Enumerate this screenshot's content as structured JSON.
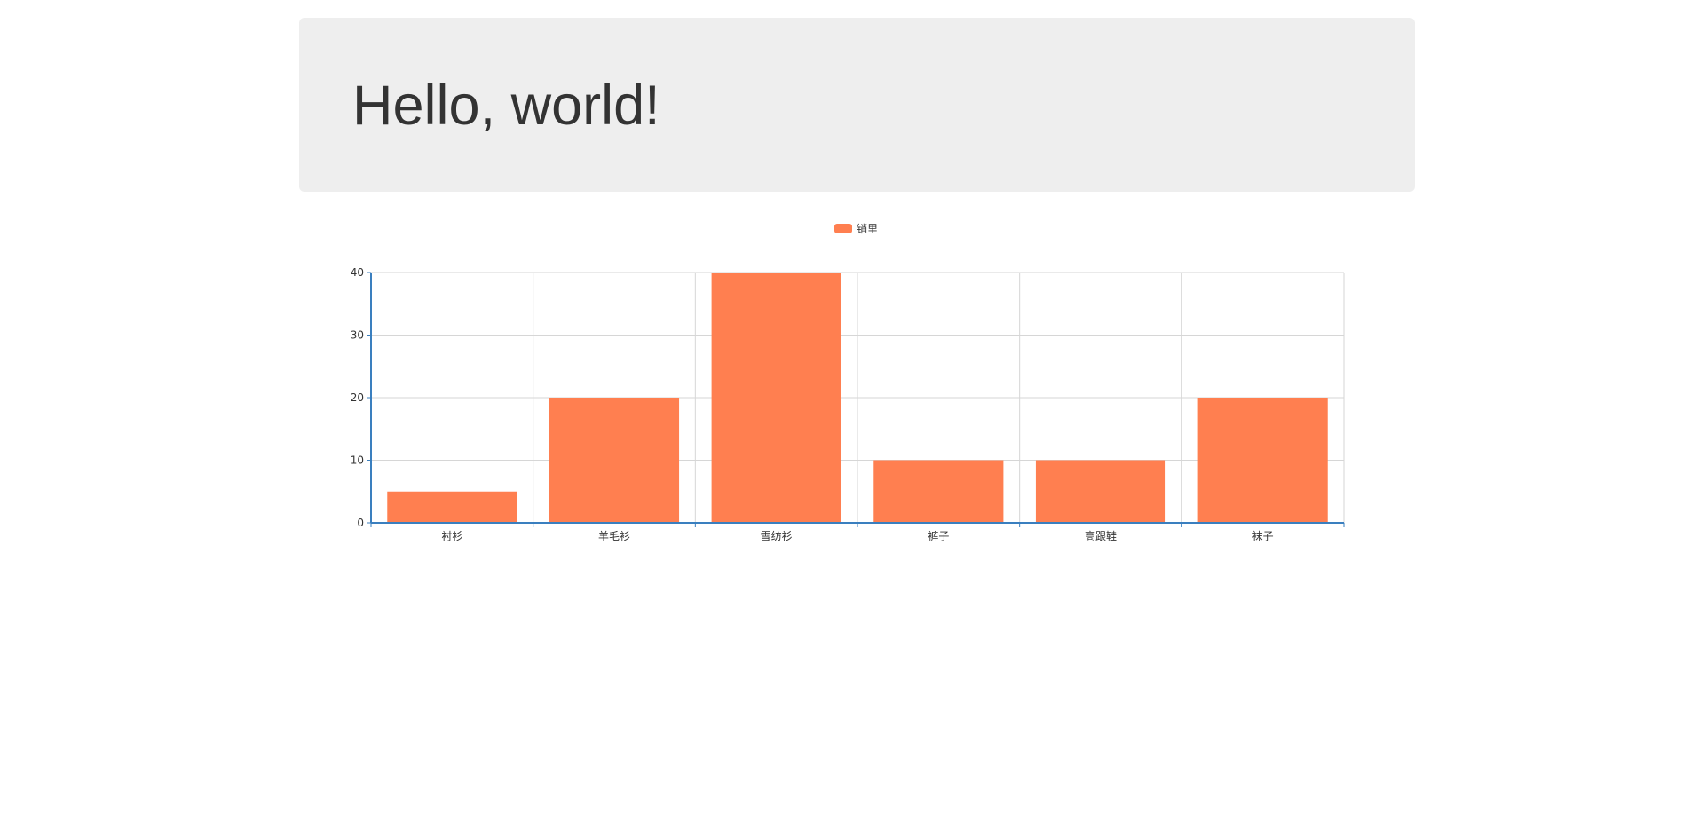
{
  "jumbotron": {
    "heading": "Hello, world!"
  },
  "chart_data": {
    "type": "bar",
    "categories": [
      "衬衫",
      "羊毛衫",
      "雪纺衫",
      "裤子",
      "高跟鞋",
      "袜子"
    ],
    "series": [
      {
        "name": "销里",
        "values": [
          5,
          20,
          40,
          10,
          10,
          20
        ]
      }
    ],
    "ylim": [
      0,
      40
    ],
    "yticks": [
      0,
      10,
      20,
      30,
      40
    ],
    "grid": true,
    "legend_position": "top-center",
    "colors": {
      "bar": "#ff7f50",
      "axis": "#3a7fbf",
      "grid": "#d6d6d6",
      "tick_text": "#333333"
    }
  }
}
